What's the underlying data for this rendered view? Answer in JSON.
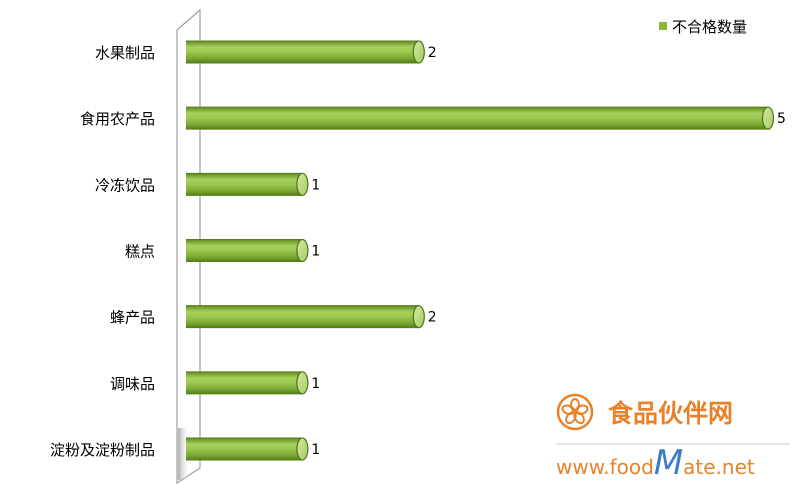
{
  "chart_data": {
    "type": "bar",
    "orientation": "horizontal",
    "style": "3d-cylinder",
    "title": "",
    "xlabel": "",
    "ylabel": "",
    "categories": [
      "水果制品",
      "食用农产品",
      "冷冻饮品",
      "糕点",
      "蜂产品",
      "调味品",
      "淀粉及淀粉制品"
    ],
    "series": [
      {
        "name": "不合格数量",
        "values": [
          2,
          5,
          1,
          1,
          2,
          1,
          1
        ]
      }
    ],
    "xlim": [
      0,
      5
    ],
    "grid": false,
    "data_labels": true,
    "legend": "top-right",
    "colors": {
      "bar": "#8cb83c",
      "bar_dark": "#557f17",
      "bar_light": "#b9da74",
      "wall_stroke": "#a0a0a0"
    }
  },
  "watermark": {
    "name": "食品伙伴网",
    "url_prefix": "www.food",
    "url_m": "M",
    "url_suffix": "ate.net",
    "color": "#e8822a"
  }
}
